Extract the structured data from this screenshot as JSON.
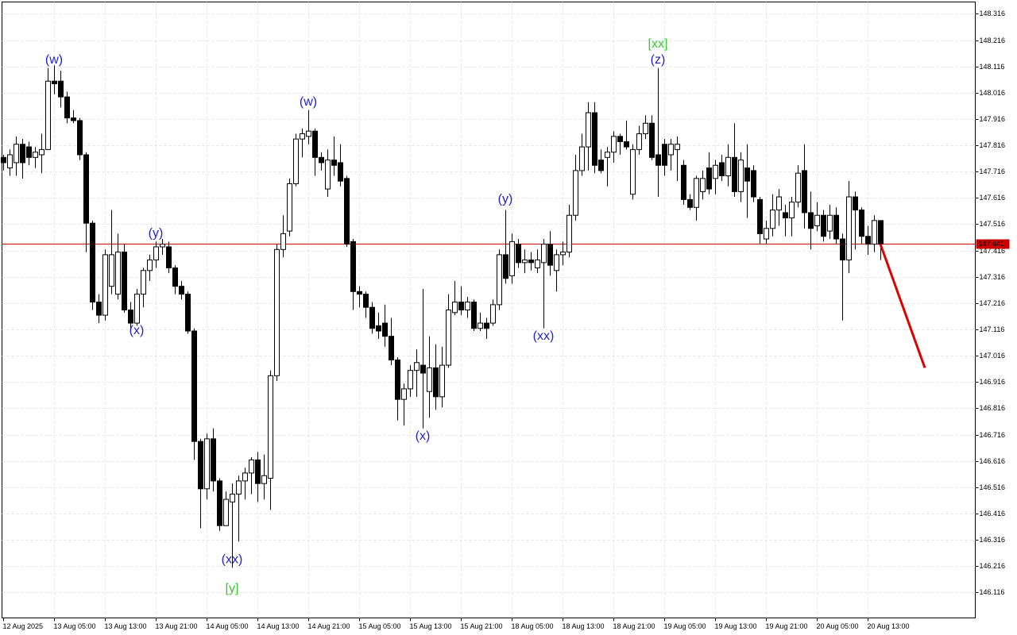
{
  "chart_data": {
    "type": "candlestick",
    "categories": [
      "12 Aug 2025",
      null,
      null,
      null,
      null,
      null,
      null,
      null,
      "13 Aug 05:00",
      null,
      null,
      null,
      null,
      null,
      null,
      null,
      "13 Aug 13:00",
      null,
      null,
      null,
      null,
      null,
      null,
      null,
      "13 Aug 21:00",
      null,
      null,
      null,
      null,
      null,
      null,
      null,
      "14 Aug 05:00",
      null,
      null,
      null,
      null,
      null,
      null,
      null,
      "14 Aug 13:00",
      null,
      null,
      null,
      null,
      null,
      null,
      null,
      "14 Aug 21:00",
      null,
      null,
      null,
      null,
      null,
      null,
      null,
      "15 Aug 05:00",
      null,
      null,
      null,
      null,
      null,
      null,
      null,
      "15 Aug 13:00",
      null,
      null,
      null,
      null,
      null,
      null,
      null,
      "15 Aug 21:00",
      null,
      null,
      null,
      null,
      null,
      null,
      null,
      "18 Aug 05:00",
      null,
      null,
      null,
      null,
      null,
      null,
      null,
      "18 Aug 13:00",
      null,
      null,
      null,
      null,
      null,
      null,
      null,
      "18 Aug 21:00",
      null,
      null,
      null,
      null,
      null,
      null,
      null,
      "19 Aug 05:00",
      null,
      null,
      null,
      null,
      null,
      null,
      null,
      "19 Aug 13:00",
      null,
      null,
      null,
      null,
      null,
      null,
      null,
      "19 Aug 21:00",
      null,
      null,
      null,
      null,
      null,
      null,
      null,
      "20 Aug 05:00",
      null,
      null,
      null,
      null,
      null,
      null,
      null,
      "20 Aug 13:00",
      null,
      null
    ],
    "open": [
      147.77,
      147.73,
      147.75,
      147.82,
      147.81,
      147.77,
      147.78,
      147.8,
      148.06,
      148.06,
      148.0,
      147.92,
      147.91,
      147.78,
      147.52,
      147.22,
      147.17,
      147.28,
      147.25,
      147.41,
      147.19,
      147.14,
      147.25,
      147.34,
      147.38,
      147.43,
      147.43,
      147.35,
      147.28,
      147.25,
      147.11,
      146.69,
      146.51,
      146.7,
      146.54,
      146.37,
      146.46,
      146.49,
      146.54,
      146.57,
      146.62,
      146.53,
      146.55,
      146.94,
      147.42,
      147.49,
      147.67,
      147.84,
      147.85,
      147.87,
      147.77,
      147.65,
      147.76,
      147.75,
      147.69,
      147.45,
      147.26,
      147.25,
      147.2,
      147.13,
      147.14,
      147.09,
      147.0,
      146.85,
      146.89,
      146.96,
      146.98,
      146.88,
      146.97,
      146.86,
      146.98,
      147.18,
      147.22,
      147.19,
      147.22,
      147.12,
      147.14,
      147.14,
      147.21,
      147.4,
      147.32,
      147.44,
      147.37,
      147.38,
      147.35,
      147.37,
      147.44,
      147.34,
      147.4,
      147.41,
      147.55,
      147.72,
      147.81,
      147.94,
      147.76,
      147.77,
      147.79,
      147.85,
      147.83,
      147.63,
      147.8,
      147.86,
      147.9,
      147.78,
      147.82,
      147.78,
      147.8,
      147.74,
      147.61,
      147.58,
      147.64,
      147.73,
      147.69,
      147.75,
      147.7,
      147.77,
      147.64,
      147.73,
      147.72,
      147.61,
      147.46,
      147.5,
      147.57,
      147.56,
      147.54,
      147.6,
      147.72,
      147.56,
      147.51,
      147.55,
      147.49,
      147.55,
      147.46,
      147.38,
      147.62,
      147.57,
      147.47,
      147.44,
      147.53
    ],
    "high": [
      147.78,
      147.8,
      147.85,
      147.84,
      147.83,
      147.81,
      147.86,
      148.11,
      148.12,
      148.1,
      148.02,
      147.95,
      147.92,
      147.79,
      147.53,
      147.25,
      147.42,
      147.57,
      147.48,
      147.44,
      147.22,
      147.27,
      147.35,
      147.4,
      147.45,
      147.46,
      147.45,
      147.36,
      147.3,
      147.26,
      147.12,
      146.7,
      146.72,
      146.74,
      146.55,
      146.5,
      146.53,
      146.56,
      146.59,
      146.63,
      146.65,
      146.64,
      146.96,
      147.44,
      147.55,
      147.69,
      147.86,
      147.88,
      147.95,
      147.88,
      147.79,
      147.8,
      147.85,
      147.82,
      147.7,
      147.46,
      147.28,
      147.26,
      147.22,
      147.18,
      147.21,
      147.16,
      147.01,
      146.91,
      146.98,
      147.04,
      147.27,
      147.09,
      147.06,
      147.05,
      147.25,
      147.3,
      147.28,
      147.24,
      147.23,
      147.18,
      147.16,
      147.23,
      147.42,
      147.57,
      147.48,
      147.46,
      147.42,
      147.41,
      147.42,
      147.46,
      147.49,
      147.42,
      147.45,
      147.59,
      147.78,
      147.86,
      147.98,
      147.98,
      147.8,
      147.81,
      147.87,
      147.86,
      147.91,
      147.82,
      147.89,
      147.93,
      147.93,
      148.11,
      147.84,
      147.84,
      147.85,
      147.76,
      147.63,
      147.7,
      147.72,
      147.79,
      147.76,
      147.78,
      147.82,
      147.9,
      147.79,
      147.82,
      147.74,
      147.62,
      147.53,
      147.63,
      147.65,
      147.59,
      147.62,
      147.74,
      147.82,
      147.64,
      147.6,
      147.57,
      147.59,
      147.58,
      147.48,
      147.68,
      147.64,
      147.58,
      147.51,
      147.55,
      147.53
    ],
    "low": [
      147.72,
      147.7,
      147.7,
      147.69,
      147.74,
      147.73,
      147.71,
      147.8,
      148.01,
      147.96,
      147.9,
      147.9,
      147.76,
      147.41,
      147.19,
      147.14,
      147.15,
      147.25,
      147.23,
      147.18,
      147.11,
      147.13,
      147.2,
      147.3,
      147.35,
      147.4,
      147.33,
      147.25,
      147.23,
      147.1,
      146.62,
      146.36,
      146.47,
      146.5,
      146.35,
      146.37,
      146.21,
      146.31,
      146.47,
      146.49,
      146.46,
      146.47,
      146.43,
      146.92,
      147.39,
      147.47,
      147.66,
      147.77,
      147.82,
      147.7,
      147.72,
      147.62,
      147.7,
      147.66,
      147.43,
      147.19,
      147.2,
      147.16,
      147.1,
      147.08,
      147.05,
      146.98,
      146.77,
      146.75,
      146.86,
      146.86,
      146.74,
      146.78,
      146.81,
      146.82,
      146.97,
      147.17,
      147.17,
      147.16,
      147.11,
      147.11,
      147.08,
      147.13,
      147.19,
      147.29,
      147.29,
      147.35,
      147.33,
      147.34,
      147.33,
      147.12,
      147.32,
      147.26,
      147.36,
      147.39,
      147.53,
      147.7,
      147.72,
      147.71,
      147.71,
      147.66,
      147.75,
      147.78,
      147.8,
      147.61,
      147.78,
      147.84,
      147.76,
      147.62,
      147.7,
      147.72,
      147.68,
      147.59,
      147.57,
      147.53,
      147.61,
      147.63,
      147.63,
      147.68,
      147.66,
      147.62,
      147.6,
      147.54,
      147.6,
      147.44,
      147.44,
      147.47,
      147.51,
      147.47,
      147.47,
      147.58,
      147.5,
      147.42,
      147.49,
      147.45,
      147.46,
      147.44,
      147.15,
      147.33,
      147.42,
      147.44,
      147.4,
      147.41,
      147.38
    ],
    "close": [
      147.75,
      147.78,
      147.82,
      147.75,
      147.77,
      147.79,
      147.8,
      148.06,
      148.05,
      148.0,
      147.92,
      147.91,
      147.78,
      147.52,
      147.22,
      147.17,
      147.4,
      147.4,
      147.41,
      147.19,
      147.14,
      147.25,
      147.34,
      147.38,
      147.43,
      147.44,
      147.35,
      147.28,
      147.25,
      147.11,
      146.69,
      146.51,
      146.7,
      146.54,
      146.37,
      146.47,
      146.49,
      146.54,
      146.57,
      146.62,
      146.53,
      146.56,
      146.94,
      147.42,
      147.48,
      147.67,
      147.84,
      147.86,
      147.87,
      147.77,
      147.75,
      147.76,
      147.74,
      147.68,
      147.44,
      147.26,
      147.25,
      147.2,
      147.12,
      147.11,
      147.09,
      147.0,
      146.85,
      146.89,
      146.96,
      146.99,
      146.95,
      146.97,
      146.86,
      146.98,
      147.19,
      147.22,
      147.19,
      147.22,
      147.12,
      147.14,
      147.12,
      147.21,
      147.4,
      147.31,
      147.45,
      147.37,
      147.38,
      147.37,
      147.38,
      147.44,
      147.36,
      147.4,
      147.41,
      147.55,
      147.72,
      147.81,
      147.94,
      147.74,
      147.72,
      147.79,
      147.85,
      147.83,
      147.81,
      147.8,
      147.86,
      147.9,
      147.77,
      147.74,
      147.74,
      147.82,
      147.82,
      147.61,
      147.58,
      147.69,
      147.69,
      147.65,
      147.74,
      147.7,
      147.77,
      147.64,
      147.76,
      147.68,
      147.62,
      147.48,
      147.5,
      147.57,
      147.62,
      147.54,
      147.6,
      147.71,
      147.56,
      147.5,
      147.55,
      147.47,
      147.55,
      147.46,
      147.38,
      147.62,
      147.57,
      147.47,
      147.44,
      147.53,
      147.44
    ],
    "up_color": "#ffffff",
    "down_color": "#000000",
    "ylim": [
      146.019,
      148.361
    ],
    "yticks": [
      146.116,
      146.216,
      146.316,
      146.416,
      146.516,
      146.616,
      146.716,
      146.816,
      146.916,
      147.016,
      147.116,
      147.216,
      147.316,
      147.416,
      147.516,
      147.616,
      147.716,
      147.816,
      147.916,
      148.016,
      148.116,
      148.216,
      148.316
    ],
    "grid": true,
    "current_price": {
      "value": 147.441,
      "color": "#cc0000"
    },
    "forecast": {
      "color": "#e00000",
      "x": [
        138,
        145
      ],
      "y": [
        147.441,
        146.97
      ]
    },
    "annotations": [
      {
        "text": "(w)",
        "index": 8,
        "price": 148.14,
        "color": "#1f1fd6"
      },
      {
        "text": "(x)",
        "index": 21,
        "price": 147.11,
        "color": "#1f1fd6"
      },
      {
        "text": "(y)",
        "index": 24,
        "price": 147.48,
        "color": "#1f1fd6"
      },
      {
        "text": "(xx)",
        "index": 36,
        "price": 146.24,
        "color": "#1f1fd6"
      },
      {
        "text": "[y]",
        "index": 36,
        "price": 146.13,
        "color": "#33cc33"
      },
      {
        "text": "(w)",
        "index": 48,
        "price": 147.98,
        "color": "#1f1fd6"
      },
      {
        "text": "(x)",
        "index": 66,
        "price": 146.71,
        "color": "#1f1fd6"
      },
      {
        "text": "(y)",
        "index": 79,
        "price": 147.61,
        "color": "#1f1fd6"
      },
      {
        "text": "(xx)",
        "index": 85,
        "price": 147.09,
        "color": "#1f1fd6"
      },
      {
        "text": "[xx]",
        "index": 103,
        "price": 148.2,
        "color": "#33cc33"
      },
      {
        "text": "(z)",
        "index": 103,
        "price": 148.14,
        "color": "#1f1fd6"
      }
    ]
  }
}
